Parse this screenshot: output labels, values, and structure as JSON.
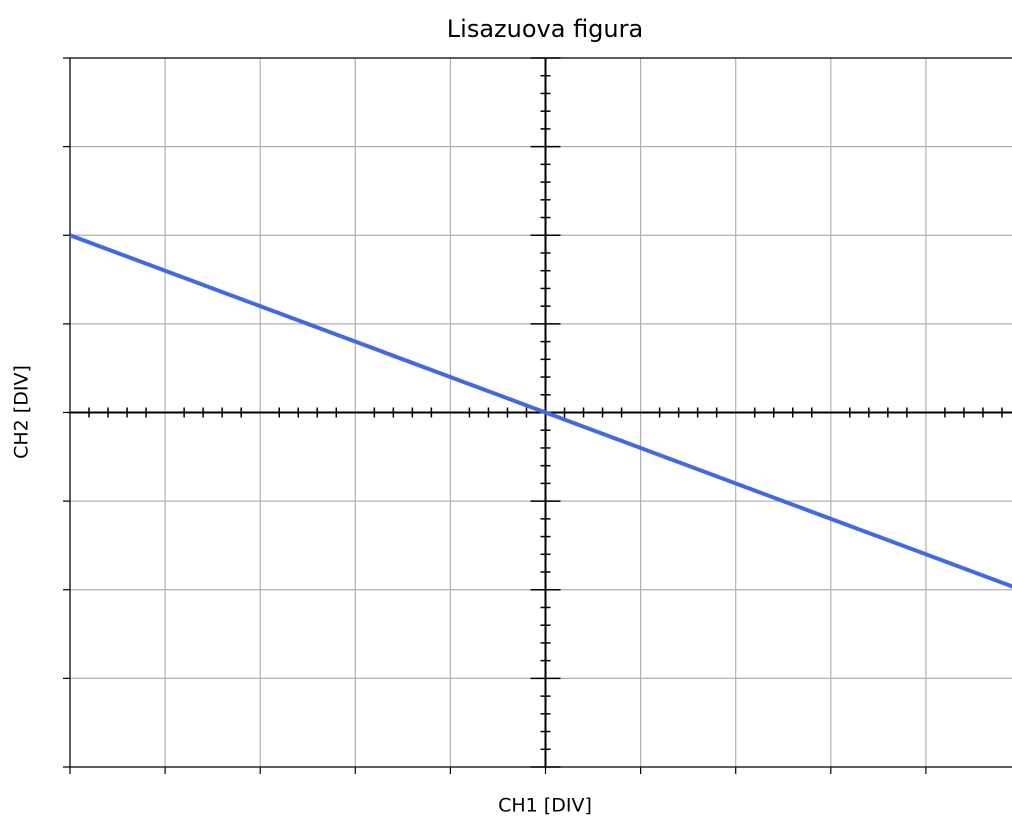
{
  "chart_data": {
    "type": "line",
    "title": "Lisazuova figura",
    "xlabel": "CH1 [DIV]",
    "ylabel": "CH2 [DIV]",
    "x": [
      -5,
      5
    ],
    "series": [
      {
        "color": "#4169e1",
        "values": [
          2,
          -2
        ]
      }
    ],
    "xlim": [
      -5,
      5
    ],
    "ylim": [
      -4,
      4
    ],
    "xticks": [
      -5,
      -4,
      -3,
      -2,
      -1,
      0,
      1,
      2,
      3,
      4,
      5
    ],
    "yticks": [
      -4,
      -3,
      -2,
      -1,
      0,
      1,
      2,
      3,
      4
    ],
    "grid": true
  }
}
